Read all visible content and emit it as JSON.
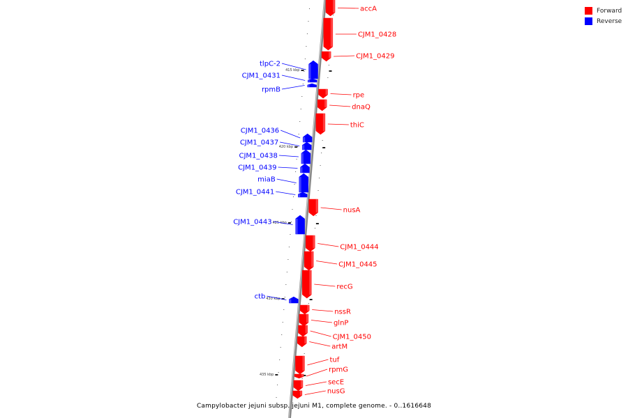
{
  "legend": {
    "forward_label": "Forward",
    "reverse_label": "Reverse",
    "forward_color": "#ff0000",
    "reverse_color": "#0000ff"
  },
  "caption": "Campylobacter jejuni subsp. jejuni M1, complete genome. - 0..1616648",
  "ticks": [
    "415 kbp",
    "420 kbp",
    "425 kbp",
    "430 kbp",
    "435 kbp"
  ],
  "genes": [
    {
      "name": "accA",
      "strand": "forward"
    },
    {
      "name": "CJM1_0428",
      "strand": "forward"
    },
    {
      "name": "CJM1_0429",
      "strand": "forward"
    },
    {
      "name": "tlpC-2",
      "strand": "reverse"
    },
    {
      "name": "CJM1_0431",
      "strand": "reverse"
    },
    {
      "name": "rpmB",
      "strand": "reverse"
    },
    {
      "name": "rpe",
      "strand": "forward"
    },
    {
      "name": "dnaQ",
      "strand": "forward"
    },
    {
      "name": "thiC",
      "strand": "forward"
    },
    {
      "name": "CJM1_0436",
      "strand": "reverse"
    },
    {
      "name": "CJM1_0437",
      "strand": "reverse"
    },
    {
      "name": "CJM1_0438",
      "strand": "reverse"
    },
    {
      "name": "CJM1_0439",
      "strand": "reverse"
    },
    {
      "name": "miaB",
      "strand": "reverse"
    },
    {
      "name": "CJM1_0441",
      "strand": "reverse"
    },
    {
      "name": "nusA",
      "strand": "forward"
    },
    {
      "name": "CJM1_0443",
      "strand": "reverse"
    },
    {
      "name": "CJM1_0444",
      "strand": "forward"
    },
    {
      "name": "CJM1_0445",
      "strand": "forward"
    },
    {
      "name": "recG",
      "strand": "forward"
    },
    {
      "name": "ctb",
      "strand": "reverse"
    },
    {
      "name": "nssR",
      "strand": "forward"
    },
    {
      "name": "glnP",
      "strand": "forward"
    },
    {
      "name": "CJM1_0450",
      "strand": "forward"
    },
    {
      "name": "artM",
      "strand": "forward"
    },
    {
      "name": "tuf",
      "strand": "forward"
    },
    {
      "name": "rpmG",
      "strand": "forward"
    },
    {
      "name": "secE",
      "strand": "forward"
    },
    {
      "name": "nusG",
      "strand": "forward"
    }
  ]
}
